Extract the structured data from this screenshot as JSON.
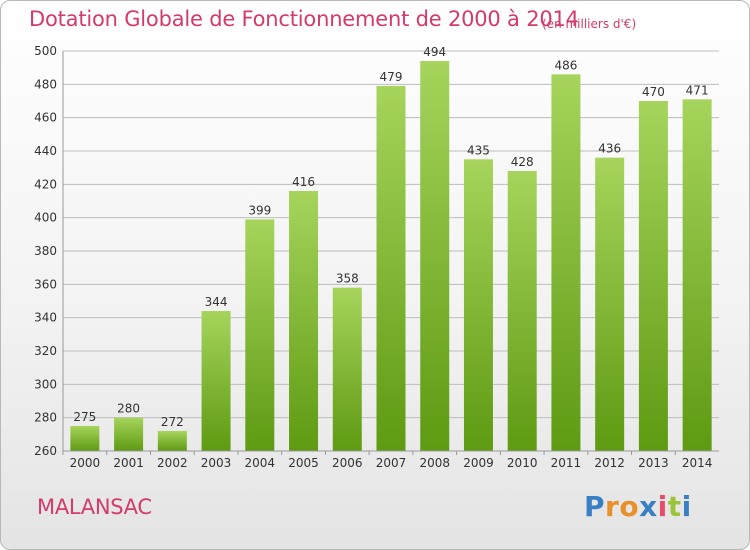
{
  "header": {
    "title": "Dotation Globale de Fonctionnement de 2000 à 2014",
    "subtitle": "(en milliers d'€)"
  },
  "footer": {
    "commune": "MALANSAC",
    "logo_text": "Proxiti"
  },
  "colors": {
    "title": "#d43a6a",
    "bar_top": "#a6d45c",
    "bar_bottom": "#5e9a12",
    "grid": "#bdbdbd",
    "axis_text": "#333333"
  },
  "chart_data": {
    "type": "bar",
    "title": "Dotation Globale de Fonctionnement de 2000 à 2014",
    "subtitle": "(en milliers d'€)",
    "xlabel": "",
    "ylabel": "",
    "categories": [
      "2000",
      "2001",
      "2002",
      "2003",
      "2004",
      "2005",
      "2006",
      "2007",
      "2008",
      "2009",
      "2010",
      "2011",
      "2012",
      "2013",
      "2014"
    ],
    "values": [
      275,
      280,
      272,
      344,
      399,
      416,
      358,
      479,
      494,
      435,
      428,
      486,
      436,
      470,
      471
    ],
    "ylim": [
      260,
      500
    ],
    "yticks": [
      260,
      280,
      300,
      320,
      340,
      360,
      380,
      400,
      420,
      440,
      460,
      480,
      500
    ],
    "grid": true,
    "data_labels": true,
    "legend": "none"
  }
}
